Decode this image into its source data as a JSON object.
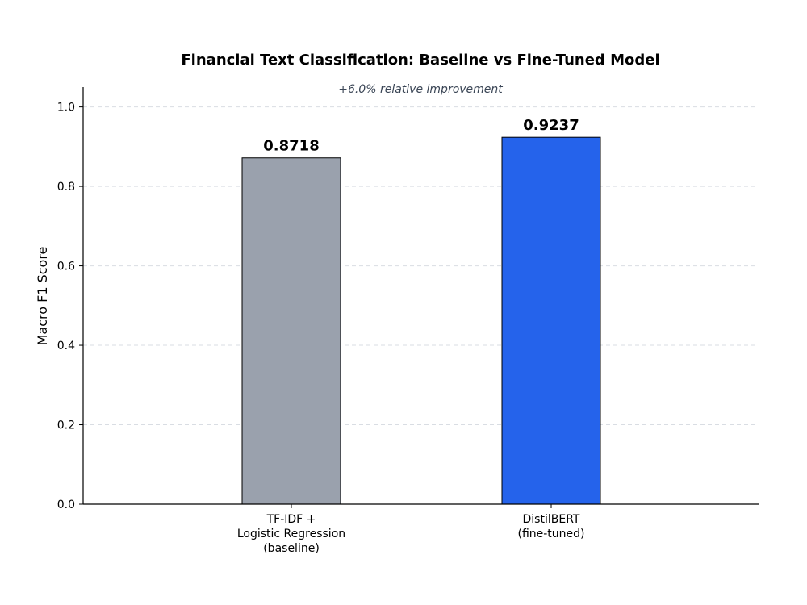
{
  "chart_data": {
    "type": "bar",
    "title": "Financial Text Classification: Baseline vs Fine-Tuned Model",
    "subtitle": "+6.0% relative improvement",
    "xlabel": "",
    "ylabel": "Macro F1 Score",
    "ylim": [
      0,
      1.05
    ],
    "yticks": [
      "0.0",
      "0.2",
      "0.4",
      "0.6",
      "0.8",
      "1.0"
    ],
    "grid": true,
    "categories": [
      [
        "TF-IDF +",
        "Logistic Regression",
        "(baseline)"
      ],
      [
        "DistilBERT",
        "(fine-tuned)"
      ]
    ],
    "values": [
      0.8718,
      0.9237
    ],
    "value_labels": [
      "0.8718",
      "0.9237"
    ],
    "colors": [
      "#9aa1ad",
      "#2563eb"
    ]
  }
}
